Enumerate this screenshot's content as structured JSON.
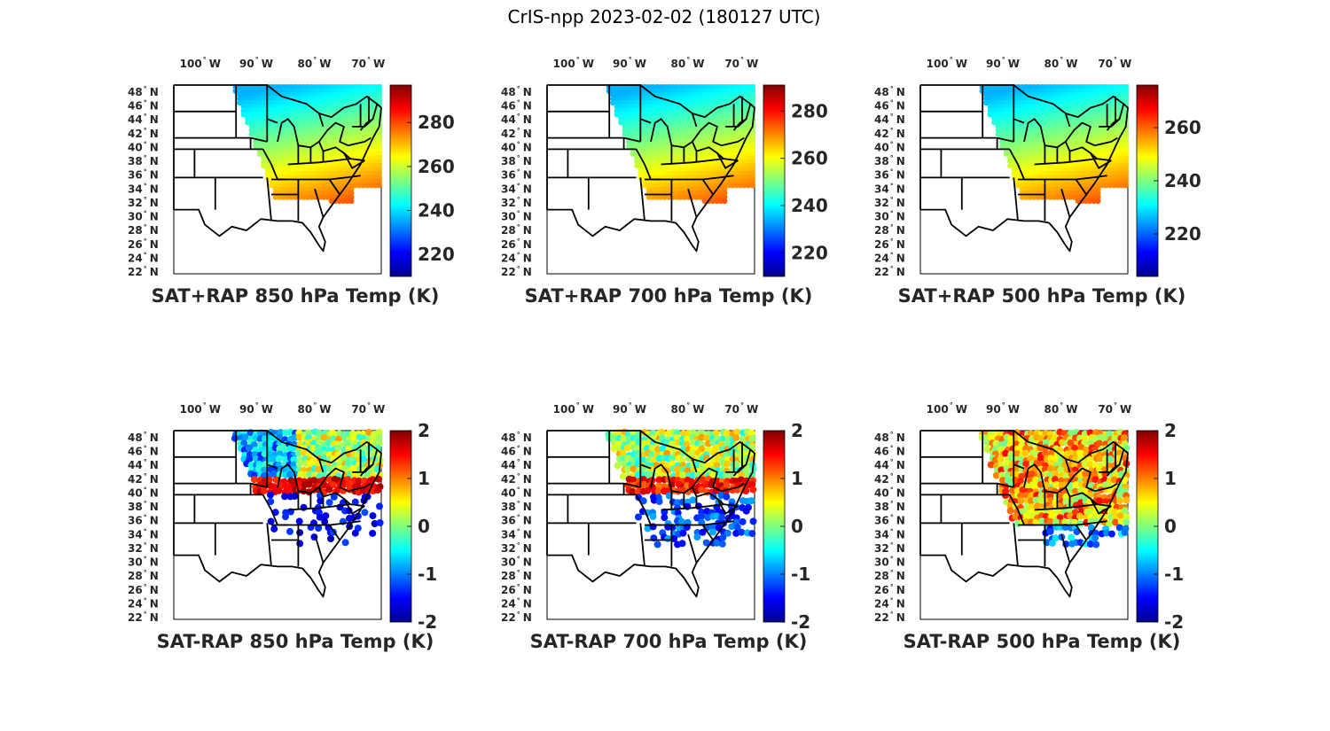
{
  "figure": {
    "title": "CrIS-npp 2023-02-02 (180127 UTC)"
  },
  "lon_labels": [
    {
      "num": "100",
      "hemi": "W"
    },
    {
      "num": "90",
      "hemi": "W"
    },
    {
      "num": "80",
      "hemi": "W"
    },
    {
      "num": "70",
      "hemi": "W"
    }
  ],
  "lat_labels": [
    {
      "num": "48",
      "hemi": "N"
    },
    {
      "num": "46",
      "hemi": "N"
    },
    {
      "num": "44",
      "hemi": "N"
    },
    {
      "num": "42",
      "hemi": "N"
    },
    {
      "num": "40",
      "hemi": "N"
    },
    {
      "num": "38",
      "hemi": "N"
    },
    {
      "num": "36",
      "hemi": "N"
    },
    {
      "num": "34",
      "hemi": "N"
    },
    {
      "num": "32",
      "hemi": "N"
    },
    {
      "num": "30",
      "hemi": "N"
    },
    {
      "num": "28",
      "hemi": "N"
    },
    {
      "num": "26",
      "hemi": "N"
    },
    {
      "num": "24",
      "hemi": "N"
    },
    {
      "num": "22",
      "hemi": "N"
    }
  ],
  "colors": {
    "jet_stops": [
      "#00008f",
      "#0000ff",
      "#00ffff",
      "#ffff00",
      "#ff0000",
      "#800000"
    ],
    "state_lines": "#000000"
  },
  "panels": [
    {
      "id": "sum-850",
      "title": "SAT+RAP 850 hPa Temp (K)",
      "kind": "sum",
      "cbar_min": 210,
      "cbar_max": 297,
      "cbar_ticks": [
        "220",
        "240",
        "260",
        "280"
      ],
      "cbar_tick_values": [
        220,
        240,
        260,
        280
      ]
    },
    {
      "id": "sum-700",
      "title": "SAT+RAP 700 hPa Temp (K)",
      "kind": "sum",
      "cbar_min": 210,
      "cbar_max": 291,
      "cbar_ticks": [
        "220",
        "240",
        "260",
        "280"
      ],
      "cbar_tick_values": [
        220,
        240,
        260,
        280
      ]
    },
    {
      "id": "sum-500",
      "title": "SAT+RAP 500 hPa Temp (K)",
      "kind": "sum",
      "cbar_min": 204,
      "cbar_max": 276,
      "cbar_ticks": [
        "220",
        "240",
        "260"
      ],
      "cbar_tick_values": [
        220,
        240,
        260
      ]
    },
    {
      "id": "diff-850",
      "title": "SAT-RAP 850 hPa Temp (K)",
      "kind": "diff",
      "cbar_min": -2,
      "cbar_max": 2,
      "cbar_ticks": [
        "-2",
        "-1",
        "0",
        "1",
        "2"
      ],
      "cbar_tick_values": [
        -2,
        -1,
        0,
        1,
        2
      ]
    },
    {
      "id": "diff-700",
      "title": "SAT-RAP 700 hPa Temp (K)",
      "kind": "diff",
      "cbar_min": -2,
      "cbar_max": 2,
      "cbar_ticks": [
        "-2",
        "-1",
        "0",
        "1",
        "2"
      ],
      "cbar_tick_values": [
        -2,
        -1,
        0,
        1,
        2
      ]
    },
    {
      "id": "diff-500",
      "title": "SAT-RAP 500 hPa Temp (K)",
      "kind": "diff",
      "cbar_min": -2,
      "cbar_max": 2,
      "cbar_ticks": [
        "-2",
        "-1",
        "0",
        "1",
        "2"
      ],
      "cbar_tick_values": [
        -2,
        -1,
        0,
        1,
        2
      ]
    }
  ]
}
